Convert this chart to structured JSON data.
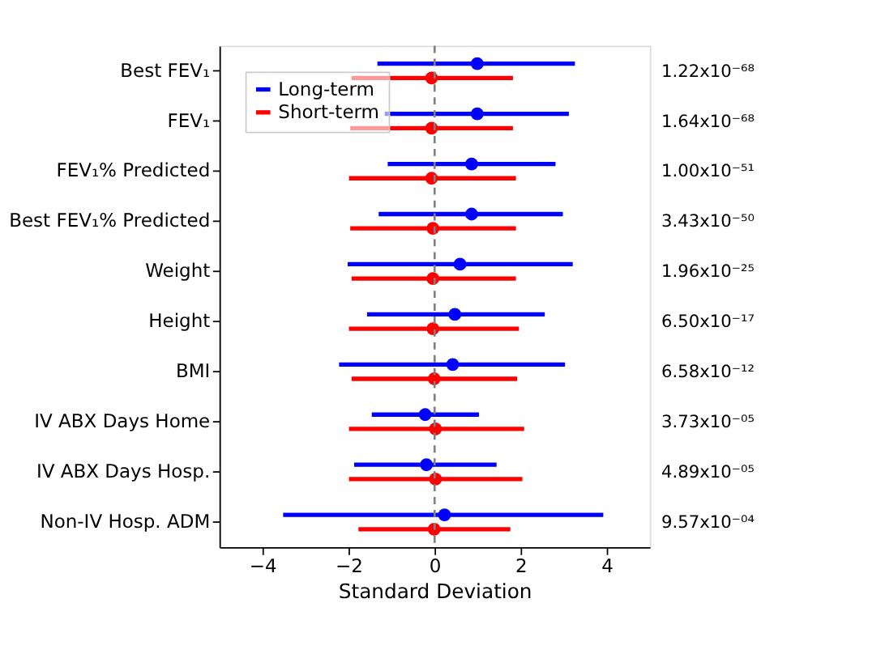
{
  "chart_data": {
    "type": "scatter",
    "orientation": "horizontal",
    "xlabel": "Standard Deviation",
    "categories": [
      "Best FEV₁",
      "FEV₁",
      "FEV₁% Predicted",
      "Best FEV₁% Predicted",
      "Weight",
      "Height",
      "BMI",
      "IV ABX Days Home",
      "IV ABX Days Hosp.",
      "Non-IV Hosp. ADM"
    ],
    "series": [
      {
        "name": "Long-term",
        "color": "#0000ff",
        "values": [
          0.99,
          0.99,
          0.86,
          0.86,
          0.59,
          0.47,
          0.42,
          -0.22,
          -0.19,
          0.23
        ],
        "errors": [
          [
            -1.33,
            3.26
          ],
          [
            -1.16,
            3.12
          ],
          [
            -1.09,
            2.81
          ],
          [
            -1.3,
            2.98
          ],
          [
            -2.02,
            3.21
          ],
          [
            -1.57,
            2.56
          ],
          [
            -2.22,
            3.03
          ],
          [
            -1.46,
            1.03
          ],
          [
            -1.87,
            1.44
          ],
          [
            -3.52,
            3.92
          ]
        ]
      },
      {
        "name": "Short-term",
        "color": "#ff0000",
        "values": [
          -0.07,
          -0.07,
          -0.07,
          -0.04,
          -0.04,
          -0.04,
          -0.01,
          0.02,
          0.02,
          -0.01
        ],
        "errors": [
          [
            -1.93,
            1.82
          ],
          [
            -1.96,
            1.82
          ],
          [
            -1.99,
            1.89
          ],
          [
            -1.96,
            1.89
          ],
          [
            -1.93,
            1.89
          ],
          [
            -1.99,
            1.96
          ],
          [
            -1.93,
            1.92
          ],
          [
            -1.99,
            2.08
          ],
          [
            -1.99,
            2.04
          ],
          [
            -1.77,
            1.76
          ]
        ]
      }
    ],
    "annotations": [
      "1.22x10⁻⁶⁸",
      "1.64x10⁻⁶⁸",
      "1.00x10⁻⁵¹",
      "3.43x10⁻⁵⁰",
      "1.96x10⁻²⁵",
      "6.50x10⁻¹⁷",
      "6.58x10⁻¹²",
      "3.73x10⁻⁰⁵",
      "4.89x10⁻⁰⁵",
      "9.57x10⁻⁰⁴"
    ],
    "xlim": [
      -5,
      5
    ],
    "xticks": [
      -4,
      -2,
      0,
      2,
      4
    ],
    "ref_lines": [
      {
        "axis": "x",
        "value": 0,
        "color": "#808080",
        "line_style": "dashed"
      }
    ],
    "marker": "circle",
    "legend": "top left",
    "grid": false
  }
}
